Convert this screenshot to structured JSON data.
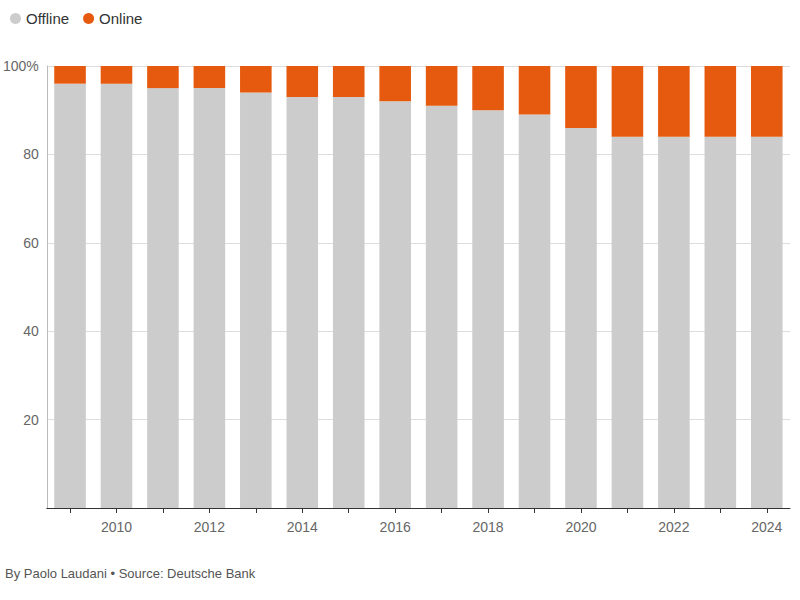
{
  "chart_data": {
    "type": "bar",
    "categories": [
      null,
      "2010",
      null,
      "2012",
      null,
      "2014",
      null,
      "2016",
      null,
      "2018",
      null,
      "2020",
      null,
      "2022",
      null,
      "2024"
    ],
    "series": [
      {
        "name": "Offline",
        "color": "#cccccc",
        "values": [
          96,
          96,
          95,
          95,
          94,
          93,
          93,
          92,
          91,
          90,
          89,
          86,
          84,
          84,
          84,
          84
        ]
      },
      {
        "name": "Online",
        "color": "#e65a0f",
        "values": [
          4,
          4,
          5,
          5,
          6,
          7,
          7,
          8,
          9,
          10,
          11,
          14,
          16,
          16,
          16,
          16
        ]
      }
    ],
    "ylim": [
      0,
      100
    ],
    "yticks": [
      20,
      40,
      60,
      80,
      {
        "value": 100,
        "label": "100%"
      }
    ],
    "stacked": true,
    "grid": true,
    "legend": "top-left",
    "annotations": [
      "By Paolo Laudani • Source: Deutsche Bank"
    ]
  }
}
